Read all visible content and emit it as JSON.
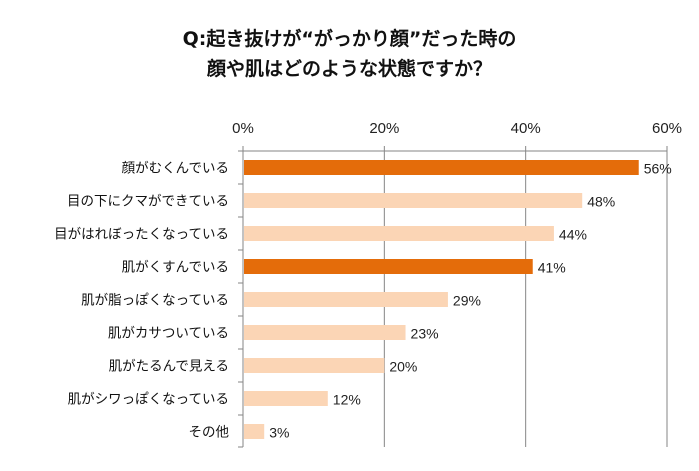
{
  "chart_data": {
    "type": "bar",
    "orientation": "horizontal",
    "title": [
      "Q:起き抜けが“がっかり顔”だった時の",
      "顔や肌はどのような状態ですか？"
    ],
    "categories": [
      "顔がむくんでいる",
      "目の下にクマができている",
      "目がはれぼったくなっている",
      "肌がくすんでいる",
      "肌が脂っぽくなっている",
      "肌がカサついている",
      "肌がたるんで見える",
      "肌がシワっぽくなっている",
      "その他"
    ],
    "values": [
      56,
      48,
      44,
      41,
      29,
      23,
      20,
      12,
      3
    ],
    "value_labels": [
      "56%",
      "48%",
      "44%",
      "41%",
      "29%",
      "23%",
      "20%",
      "12%",
      "3%"
    ],
    "highlighted": [
      true,
      false,
      false,
      true,
      false,
      false,
      false,
      false,
      false
    ],
    "xlim": [
      0,
      60
    ],
    "xticks": [
      0,
      20,
      40,
      60
    ],
    "xtick_labels": [
      "0%",
      "20%",
      "40%",
      "60%"
    ],
    "axis_position": "top",
    "grid": "vertical",
    "colors": {
      "highlight": "#E46C0A",
      "normal": "#FBD5B5",
      "grid": "#868686"
    }
  }
}
